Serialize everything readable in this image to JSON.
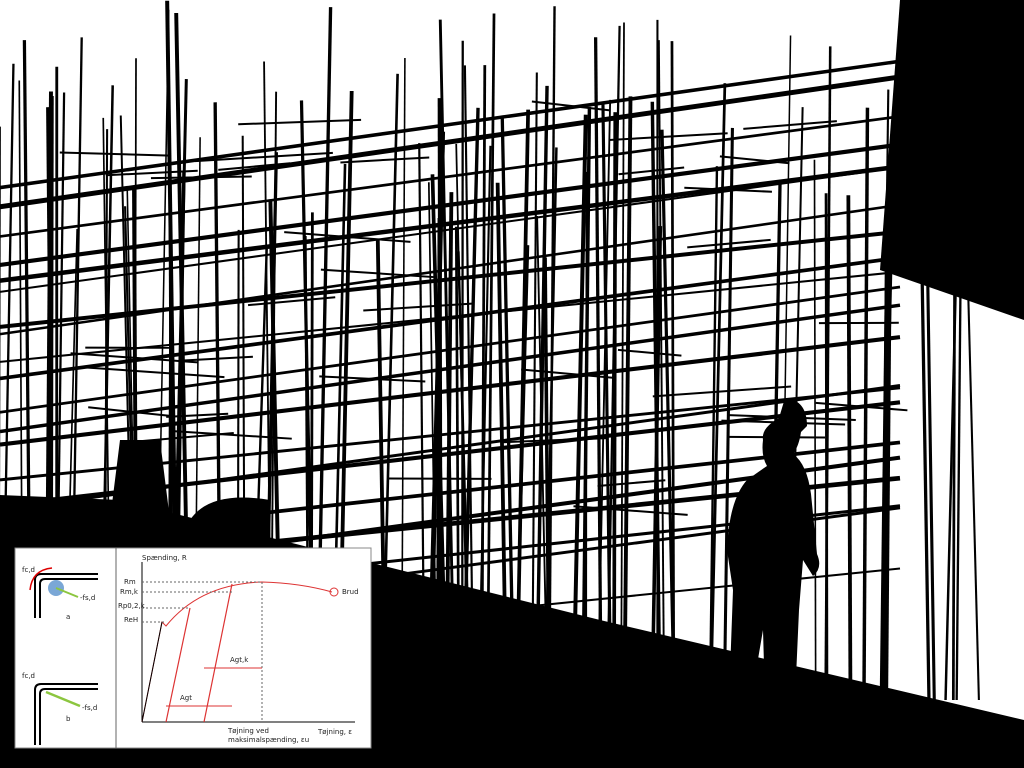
{
  "inset": {
    "left_panel": {
      "a": {
        "tension_label": "fc,d",
        "force_label": "-fs,d",
        "caption": "a"
      },
      "b": {
        "tension_label": "fc,d",
        "force_label": "-fs,d",
        "caption": "b"
      }
    },
    "diagram": {
      "y_axis_label": "Spænding, R",
      "x_axis_label": "Tøjning, ε",
      "strain_label_line1": "Tøjning ved",
      "strain_label_line2": "maksimalspænding, εu",
      "fracture_label": "Brud",
      "stress_labels": [
        "Rm",
        "Rm,k",
        "Rp0,2,k",
        "ReH"
      ],
      "elongation_labels": [
        "Agt,k",
        "Agt"
      ]
    }
  }
}
